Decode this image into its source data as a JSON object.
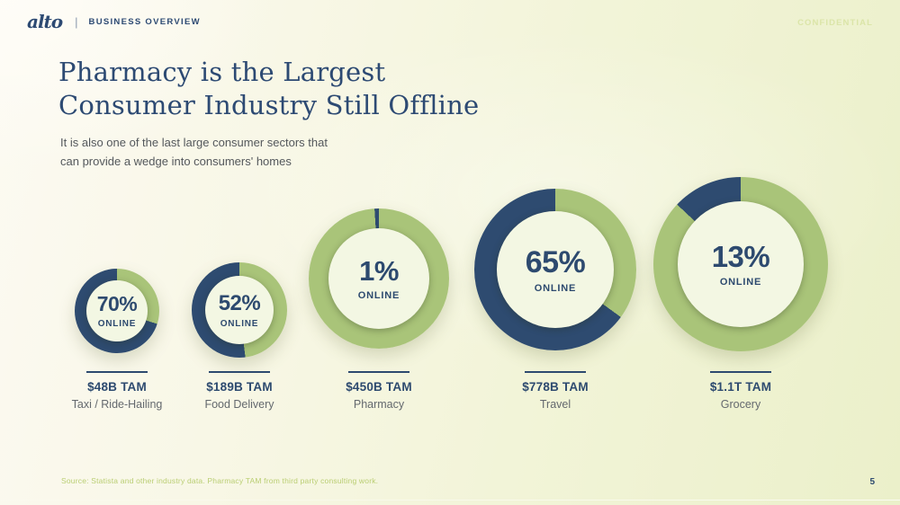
{
  "header": {
    "logo": "alto",
    "separator": "|",
    "section": "BUSINESS OVERVIEW",
    "confidential": "CONFIDENTIAL"
  },
  "title": {
    "line1": "Pharmacy is the Largest",
    "line2": "Consumer Industry Still Offline"
  },
  "subtitle": {
    "line1": "It is also one of the last large consumer sectors that",
    "line2": "can provide a wedge into consumers' homes"
  },
  "chart_data": {
    "type": "pie",
    "variant": "donut",
    "title": "Share of each consumer industry that is online; donut size proportional to TAM",
    "center_caption": "ONLINE",
    "legend": {
      "online_color": "#2e4b70",
      "offline_color": "#a9c479"
    },
    "industries": [
      {
        "category": "Taxi / Ride-Hailing",
        "tam_label": "$48B TAM",
        "tam_value_usd_b": 48,
        "online_pct": 70,
        "offline_pct": 30,
        "center_value": "70%"
      },
      {
        "category": "Food Delivery",
        "tam_label": "$189B TAM",
        "tam_value_usd_b": 189,
        "online_pct": 52,
        "offline_pct": 48,
        "center_value": "52%"
      },
      {
        "category": "Pharmacy",
        "tam_label": "$450B TAM",
        "tam_value_usd_b": 450,
        "online_pct": 1,
        "offline_pct": 99,
        "center_value": "1%"
      },
      {
        "category": "Travel",
        "tam_label": "$778B TAM",
        "tam_value_usd_b": 778,
        "online_pct": 65,
        "offline_pct": 35,
        "center_value": "65%"
      },
      {
        "category": "Grocery",
        "tam_label": "$1.1T TAM",
        "tam_value_usd_b": 1100,
        "online_pct": 13,
        "offline_pct": 87,
        "center_value": "13%"
      }
    ]
  },
  "footer": {
    "source": "Source: Statista and other industry data. Pharmacy TAM from third party consulting work.",
    "page": "5"
  },
  "colors": {
    "navy": "#2d4a6f",
    "green": "#a9c479",
    "donut_center": "#f3f7e3",
    "background_left": "#fcfaf2",
    "background_right": "#ebf0ca",
    "confidential": "#dbe5a8",
    "source_text": "#bace73"
  }
}
